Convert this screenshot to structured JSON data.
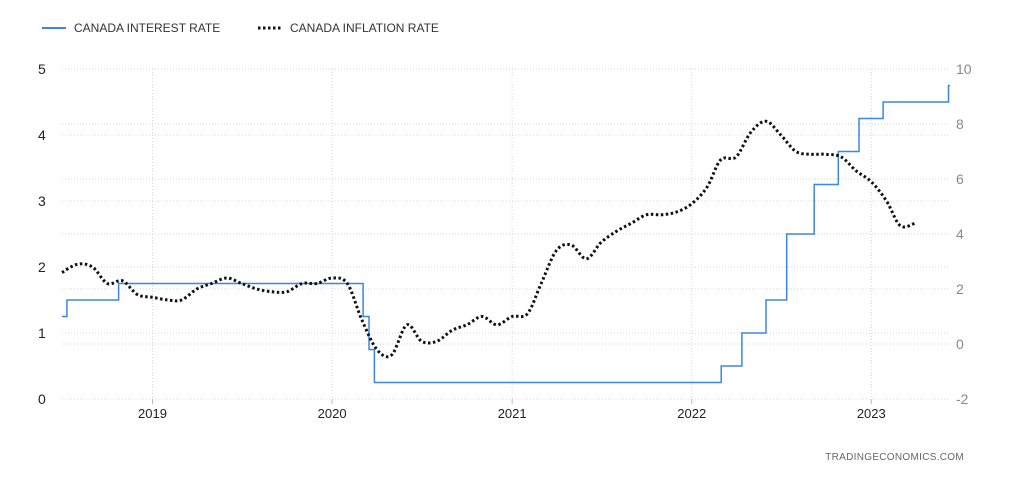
{
  "source_label": "TRADINGECONOMICS.COM",
  "colors": {
    "interest": "#3d85e6",
    "inflation": "#111111",
    "grid": "#d6d6d6"
  },
  "chart_data": {
    "type": "line",
    "x_axis": {
      "type": "time",
      "range": [
        "2018-07-01",
        "2023-06-10"
      ],
      "ticks": [
        "2019",
        "2020",
        "2021",
        "2022",
        "2023"
      ]
    },
    "y_axis_left": {
      "range": [
        0,
        5
      ],
      "ticks": [
        "0",
        "1",
        "2",
        "3",
        "4",
        "5"
      ]
    },
    "y_axis_right": {
      "range": [
        -2,
        10
      ],
      "ticks": [
        "-2",
        "0",
        "2",
        "4",
        "6",
        "8",
        "10"
      ]
    },
    "grid": true,
    "legend": "top-left",
    "series": [
      {
        "name": "CANADA INTEREST RATE",
        "axis": "left",
        "style": "step",
        "points": [
          [
            "2018-07-01",
            1.25
          ],
          [
            "2018-07-11",
            1.5
          ],
          [
            "2018-10-24",
            1.75
          ],
          [
            "2020-03-04",
            1.25
          ],
          [
            "2020-03-16",
            0.75
          ],
          [
            "2020-03-27",
            0.25
          ],
          [
            "2022-03-02",
            0.5
          ],
          [
            "2022-04-13",
            1.0
          ],
          [
            "2022-06-01",
            1.5
          ],
          [
            "2022-07-13",
            2.5
          ],
          [
            "2022-09-07",
            3.25
          ],
          [
            "2022-10-26",
            3.75
          ],
          [
            "2022-12-07",
            4.25
          ],
          [
            "2023-01-25",
            4.5
          ],
          [
            "2023-06-07",
            4.75
          ]
        ]
      },
      {
        "name": "CANADA INFLATION RATE",
        "axis": "right",
        "style": "dotted",
        "points": [
          [
            "2018-07-01",
            2.6
          ],
          [
            "2018-08-01",
            2.9
          ],
          [
            "2018-09-01",
            2.8
          ],
          [
            "2018-10-01",
            2.2
          ],
          [
            "2018-11-01",
            2.3
          ],
          [
            "2018-12-01",
            1.8
          ],
          [
            "2019-01-01",
            1.7
          ],
          [
            "2019-02-01",
            1.6
          ],
          [
            "2019-03-01",
            1.6
          ],
          [
            "2019-04-01",
            2.0
          ],
          [
            "2019-05-01",
            2.2
          ],
          [
            "2019-06-01",
            2.4
          ],
          [
            "2019-07-01",
            2.2
          ],
          [
            "2019-08-01",
            2.0
          ],
          [
            "2019-09-01",
            1.9
          ],
          [
            "2019-10-01",
            1.9
          ],
          [
            "2019-11-01",
            2.2
          ],
          [
            "2019-12-01",
            2.2
          ],
          [
            "2020-01-01",
            2.4
          ],
          [
            "2020-02-01",
            2.2
          ],
          [
            "2020-03-01",
            0.9
          ],
          [
            "2020-04-01",
            -0.2
          ],
          [
            "2020-05-01",
            -0.4
          ],
          [
            "2020-06-01",
            0.7
          ],
          [
            "2020-07-01",
            0.1
          ],
          [
            "2020-08-01",
            0.1
          ],
          [
            "2020-09-01",
            0.5
          ],
          [
            "2020-10-01",
            0.7
          ],
          [
            "2020-11-01",
            1.0
          ],
          [
            "2020-12-01",
            0.7
          ],
          [
            "2021-01-01",
            1.0
          ],
          [
            "2021-02-01",
            1.1
          ],
          [
            "2021-03-01",
            2.2
          ],
          [
            "2021-04-01",
            3.4
          ],
          [
            "2021-05-01",
            3.6
          ],
          [
            "2021-06-01",
            3.1
          ],
          [
            "2021-07-01",
            3.7
          ],
          [
            "2021-08-01",
            4.1
          ],
          [
            "2021-09-01",
            4.4
          ],
          [
            "2021-10-01",
            4.7
          ],
          [
            "2021-11-01",
            4.7
          ],
          [
            "2021-12-01",
            4.8
          ],
          [
            "2022-01-01",
            5.1
          ],
          [
            "2022-02-01",
            5.7
          ],
          [
            "2022-03-01",
            6.7
          ],
          [
            "2022-04-01",
            6.8
          ],
          [
            "2022-05-01",
            7.7
          ],
          [
            "2022-06-01",
            8.1
          ],
          [
            "2022-07-01",
            7.6
          ],
          [
            "2022-08-01",
            7.0
          ],
          [
            "2022-09-01",
            6.9
          ],
          [
            "2022-10-01",
            6.9
          ],
          [
            "2022-11-01",
            6.8
          ],
          [
            "2022-12-01",
            6.3
          ],
          [
            "2023-01-01",
            5.9
          ],
          [
            "2023-02-01",
            5.2
          ],
          [
            "2023-03-01",
            4.3
          ],
          [
            "2023-04-01",
            4.4
          ]
        ]
      }
    ]
  }
}
